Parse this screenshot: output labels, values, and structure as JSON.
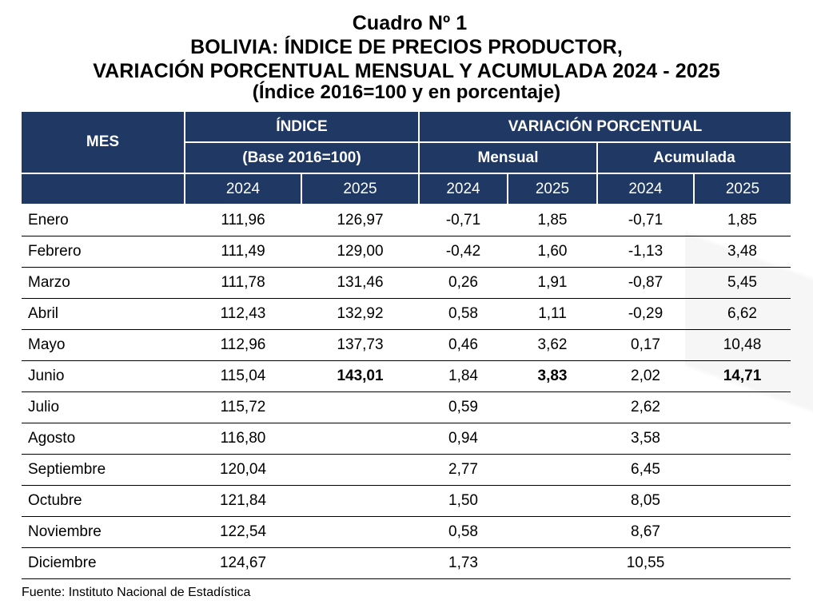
{
  "title": {
    "line1": "Cuadro Nº 1",
    "line2": "BOLIVIA: ÍNDICE DE PRECIOS PRODUCTOR,",
    "line3": "VARIACIÓN PORCENTUAL MENSUAL Y ACUMULADA  2024 - 2025",
    "line4": "(Índice 2016=100 y en porcentaje)"
  },
  "header": {
    "mes": "MES",
    "indice": "ÍNDICE",
    "base": "(Base 2016=100)",
    "variacion": "VARIACIÓN PORCENTUAL",
    "mensual": "Mensual",
    "acumulada": "Acumulada",
    "years": [
      "2024",
      "2025",
      "2024",
      "2025",
      "2024",
      "2025"
    ]
  },
  "rows": [
    {
      "mes": "Enero",
      "i2024": "111,96",
      "i2025": "126,97",
      "m2024": "-0,71",
      "m2025": "1,85",
      "a2024": "-0,71",
      "a2025": "1,85"
    },
    {
      "mes": "Febrero",
      "i2024": "111,49",
      "i2025": "129,00",
      "m2024": "-0,42",
      "m2025": "1,60",
      "a2024": "-1,13",
      "a2025": "3,48"
    },
    {
      "mes": "Marzo",
      "i2024": "111,78",
      "i2025": "131,46",
      "m2024": "0,26",
      "m2025": "1,91",
      "a2024": "-0,87",
      "a2025": "5,45"
    },
    {
      "mes": "Abril",
      "i2024": "112,43",
      "i2025": "132,92",
      "m2024": "0,58",
      "m2025": "1,11",
      "a2024": "-0,29",
      "a2025": "6,62"
    },
    {
      "mes": "Mayo",
      "i2024": "112,96",
      "i2025": "137,73",
      "m2024": "0,46",
      "m2025": "3,62",
      "a2024": "0,17",
      "a2025": "10,48"
    },
    {
      "mes": "Junio",
      "i2024": "115,04",
      "i2025": "143,01",
      "m2024": "1,84",
      "m2025": "3,83",
      "a2024": "2,02",
      "a2025": "14,71"
    },
    {
      "mes": "Julio",
      "i2024": "115,72",
      "i2025": "",
      "m2024": "0,59",
      "m2025": "",
      "a2024": "2,62",
      "a2025": ""
    },
    {
      "mes": "Agosto",
      "i2024": "116,80",
      "i2025": "",
      "m2024": "0,94",
      "m2025": "",
      "a2024": "3,58",
      "a2025": ""
    },
    {
      "mes": "Septiembre",
      "i2024": "120,04",
      "i2025": "",
      "m2024": "2,77",
      "m2025": "",
      "a2024": "6,45",
      "a2025": ""
    },
    {
      "mes": "Octubre",
      "i2024": "121,84",
      "i2025": "",
      "m2024": "1,50",
      "m2025": "",
      "a2024": "8,05",
      "a2025": ""
    },
    {
      "mes": "Noviembre",
      "i2024": "122,54",
      "i2025": "",
      "m2024": "0,58",
      "m2025": "",
      "a2024": "8,67",
      "a2025": ""
    },
    {
      "mes": "Diciembre",
      "i2024": "124,67",
      "i2025": "",
      "m2024": "1,73",
      "m2025": "",
      "a2024": "10,55",
      "a2025": ""
    }
  ],
  "footer": {
    "source": "Fuente: Instituto Nacional de Estadística"
  }
}
